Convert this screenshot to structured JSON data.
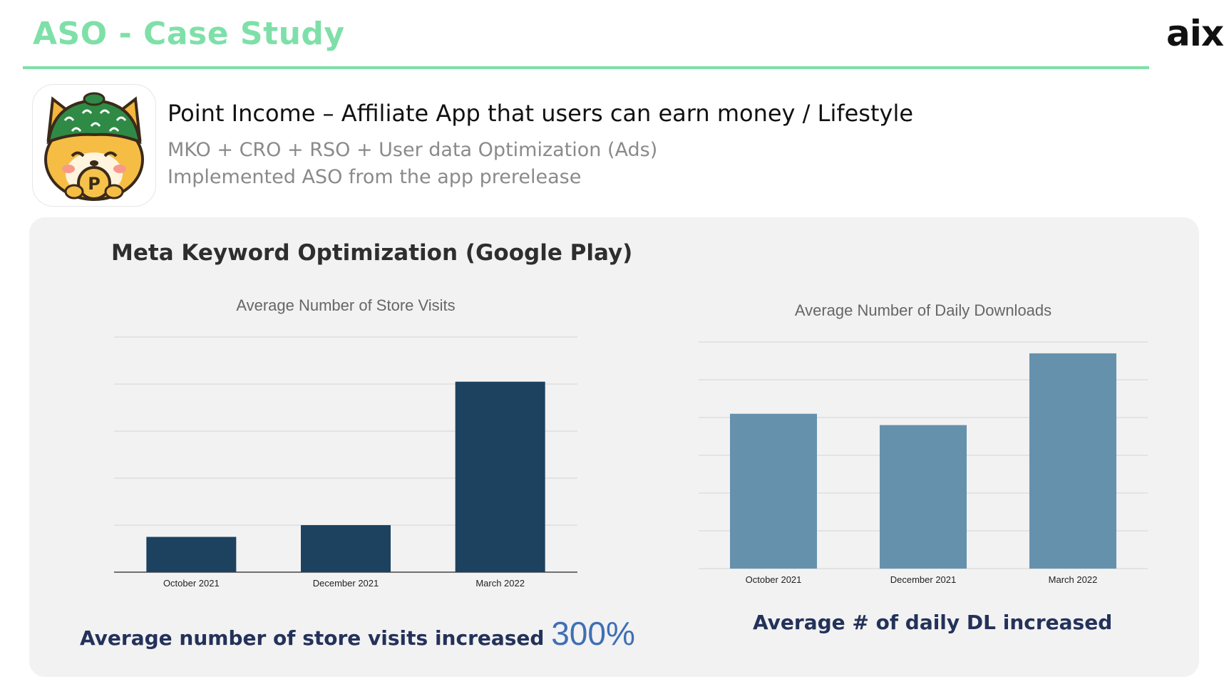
{
  "header": {
    "title": "ASO - Case Study",
    "brand": "aix",
    "accent_color": "#7ee0a8"
  },
  "app": {
    "icon": "shiba-dog-coin-icon",
    "name": "Point Income – Affiliate App that users can earn money / Lifestyle",
    "line1": "MKO + CRO + RSO + User data Optimization (Ads)",
    "line2": "Implemented ASO from the app prerelease"
  },
  "panel": {
    "background": "#f2f2f2",
    "section_title": "Meta Keyword Optimization (Google Play)"
  },
  "chart_data": [
    {
      "type": "bar",
      "title": "Average Number of Store Visits",
      "categories": [
        "October 2021",
        "December 2021",
        "March 2022"
      ],
      "values": [
        15,
        20,
        81
      ],
      "ylim": [
        0,
        100
      ],
      "grid": true,
      "color": "#1d4260"
    },
    {
      "type": "bar",
      "title": "Average Number of Daily Downloads",
      "categories": [
        "October 2021",
        "December 2021",
        "March 2022"
      ],
      "values": [
        82,
        76,
        114
      ],
      "ylim": [
        0,
        120
      ],
      "grid": true,
      "color": "#6591ad"
    }
  ],
  "captions": {
    "left_text": "Average number of store visits increased",
    "left_highlight": "300%",
    "right_text": "Average # of daily DL increased",
    "text_color": "#24325a",
    "highlight_color": "#3f6fb5"
  }
}
